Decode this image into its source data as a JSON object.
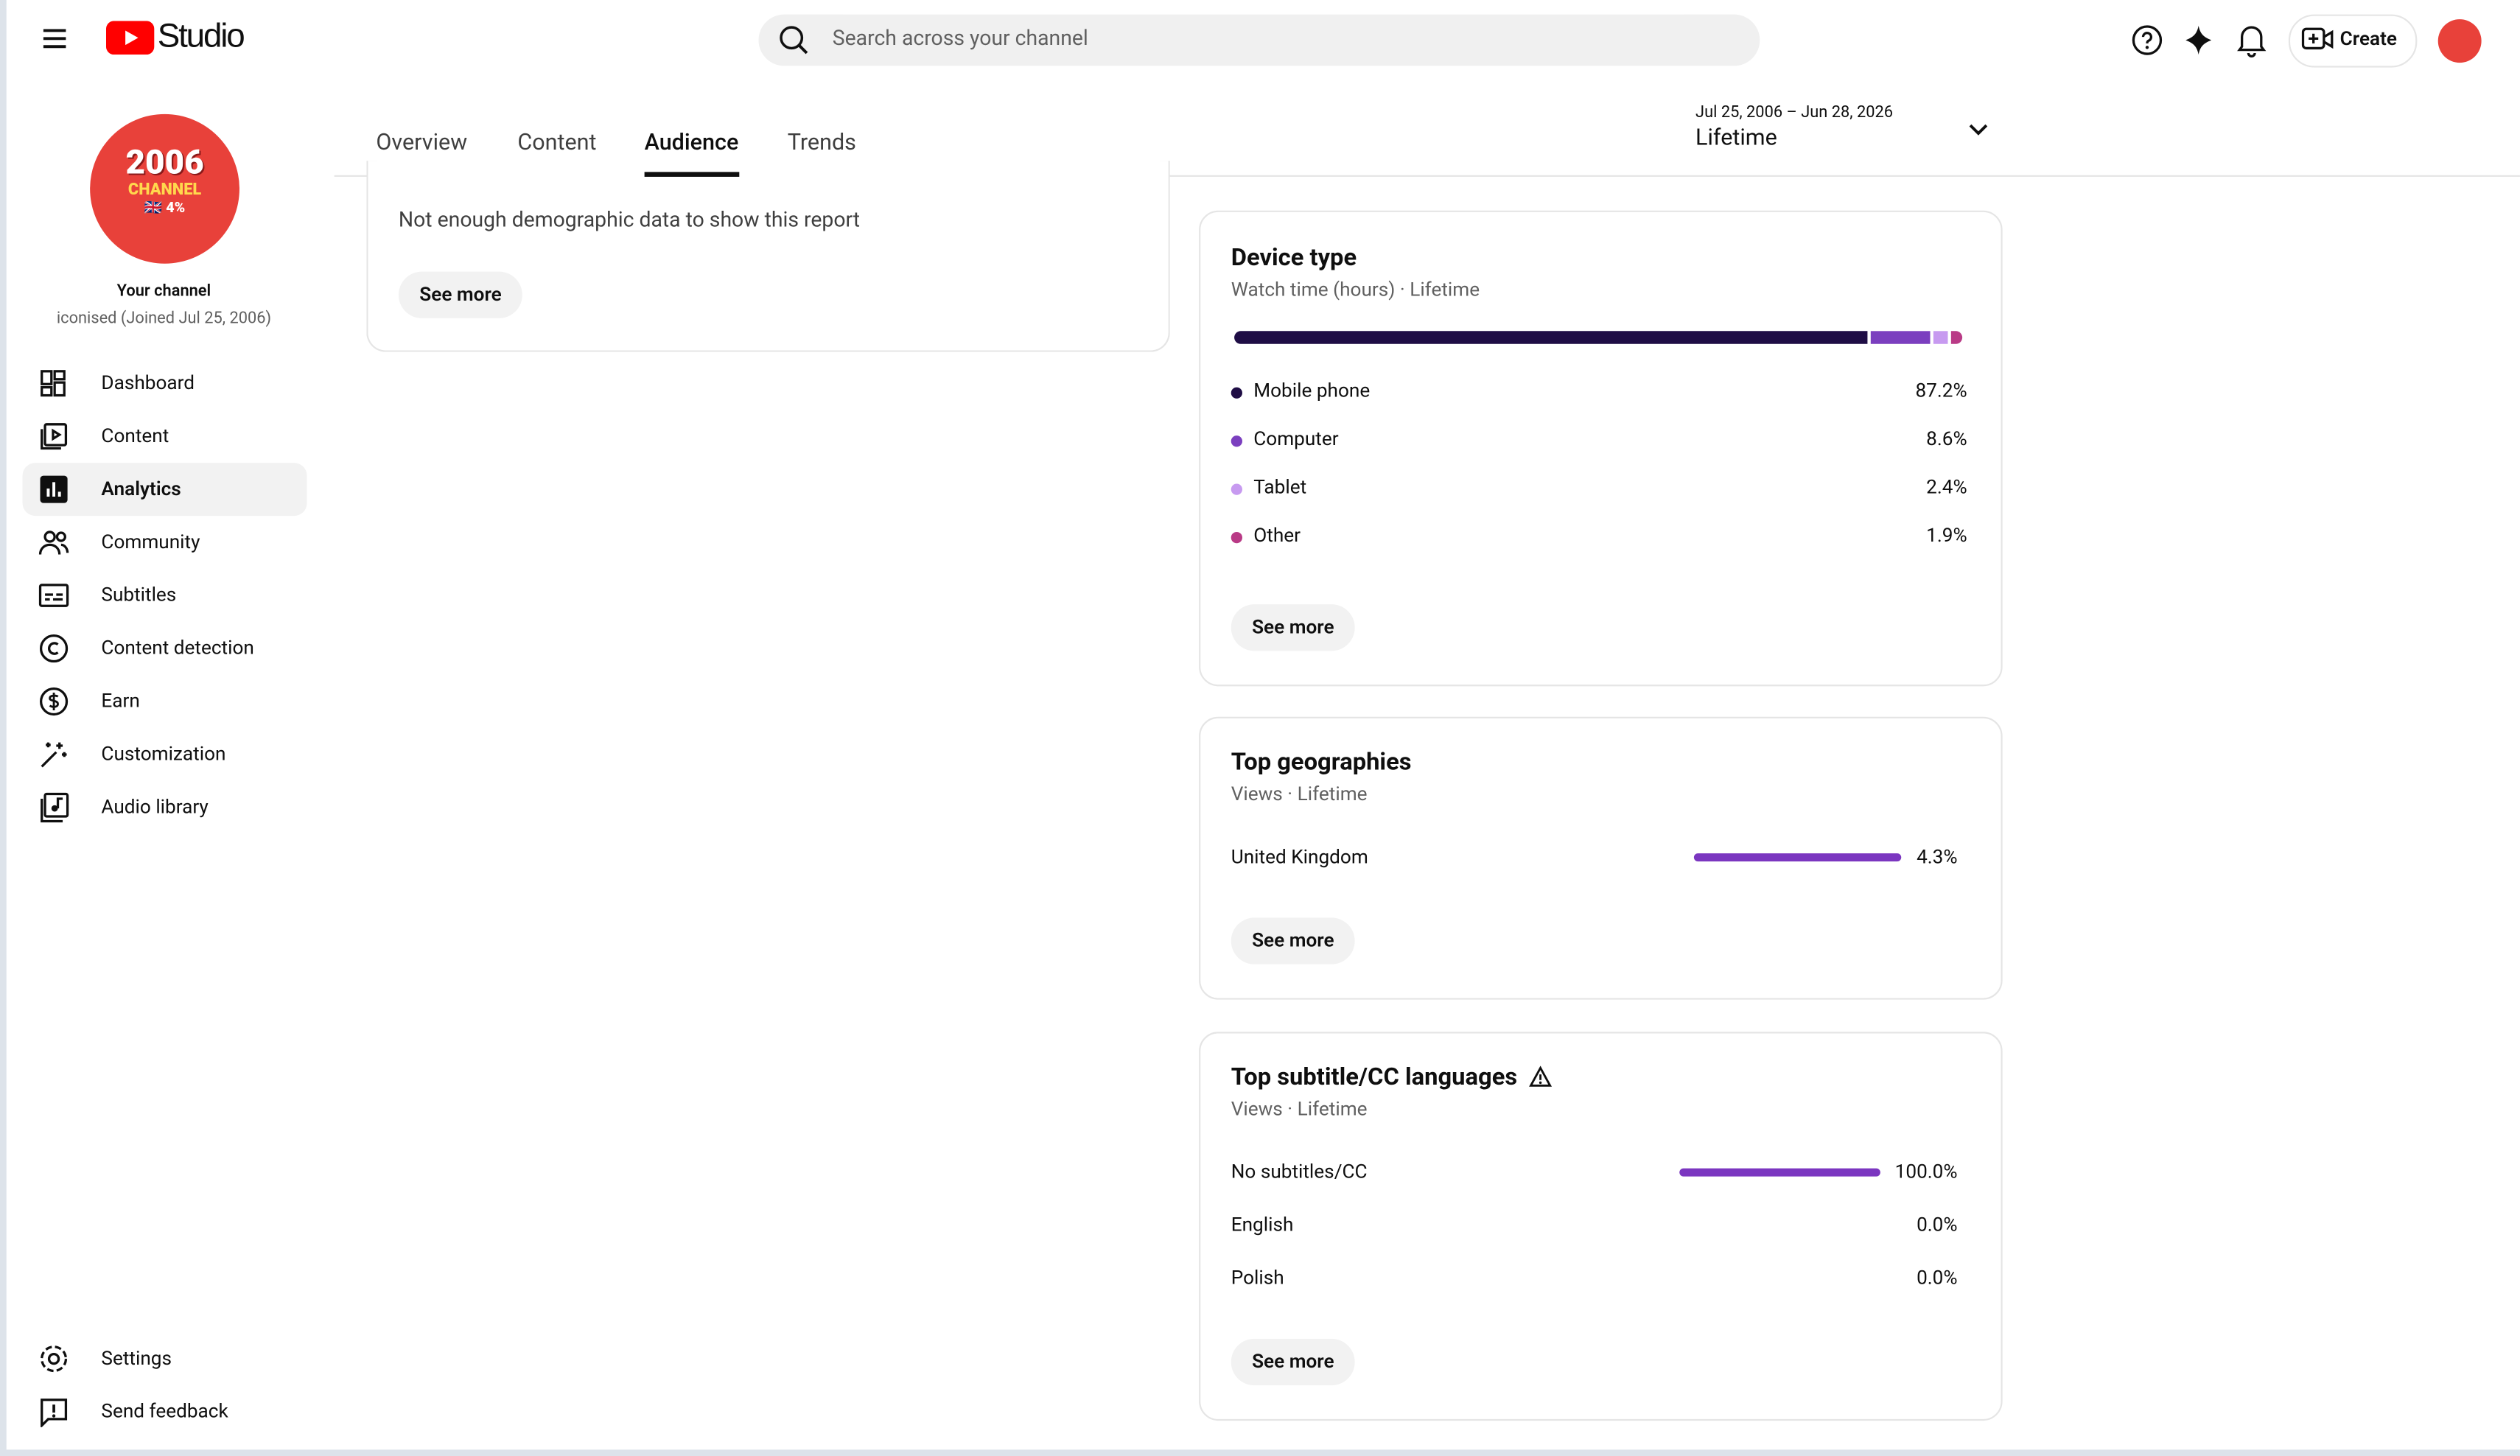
{
  "header": {
    "logo": "Studio",
    "search_placeholder": "Search across your channel",
    "create": "Create"
  },
  "sidebar": {
    "avatar": {
      "year": "2006",
      "word": "CHANNEL",
      "tag": "🇬🇧 4%"
    },
    "channel_title": "Your channel",
    "channel_subtitle": "iconised (Joined Jul 25, 2006)",
    "nav": [
      "Dashboard",
      "Content",
      "Analytics",
      "Community",
      "Subtitles",
      "Content detection",
      "Earn",
      "Customization",
      "Audio library"
    ],
    "active": 2,
    "bottom": [
      "Settings",
      "Send feedback"
    ]
  },
  "tabs": {
    "items": [
      "Overview",
      "Content",
      "Audience",
      "Trends"
    ],
    "active": 2
  },
  "date_range": {
    "range": "Jul 25, 2006 – Jun 28, 2026",
    "label": "Lifetime"
  },
  "demographics": {
    "message": "Not enough demographic data to show this report",
    "button": "See more"
  },
  "device_type": {
    "title": "Device type",
    "subtitle": "Watch time (hours) · Lifetime",
    "button": "See more",
    "items": [
      {
        "name": "Mobile phone",
        "color": "#1f0d45",
        "value": 87.2,
        "label": "87.2%"
      },
      {
        "name": "Computer",
        "color": "#7b3fbf",
        "value": 8.6,
        "label": "8.6%"
      },
      {
        "name": "Tablet",
        "color": "#c79af0",
        "value": 2.4,
        "label": "2.4%"
      },
      {
        "name": "Other",
        "color": "#b93a86",
        "value": 1.9,
        "label": "1.9%"
      }
    ]
  },
  "top_geographies": {
    "title": "Top geographies",
    "subtitle": "Views · Lifetime",
    "button": "See more",
    "color": "#7b36c0",
    "items": [
      {
        "name": "United Kingdom",
        "value": 4.3,
        "label": "4.3%"
      }
    ]
  },
  "subtitle_languages": {
    "title": "Top subtitle/CC languages",
    "subtitle": "Views · Lifetime",
    "button": "See more",
    "color": "#7b36c0",
    "items": [
      {
        "name": "No subtitles/CC",
        "value": 100.0,
        "label": "100.0%"
      },
      {
        "name": "English",
        "value": 0.0,
        "label": "0.0%"
      },
      {
        "name": "Polish",
        "value": 0.0,
        "label": "0.0%"
      }
    ]
  }
}
